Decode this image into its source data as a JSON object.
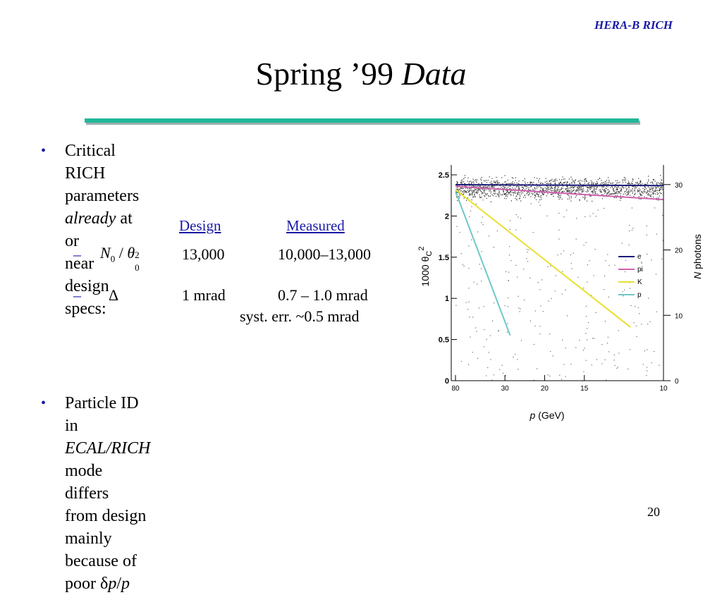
{
  "header": {
    "tag": "HERA-B RICH"
  },
  "title": {
    "main": "Spring ’99 ",
    "italic": "Data"
  },
  "bullets": [
    {
      "pre": "Critical RICH parameters ",
      "ital": "already",
      "post": " at or",
      "line2": "near design specs:"
    },
    {
      "pre": "Particle ID in ",
      "ital": "ECAL/RICH",
      "post": " mode differs",
      "line2": "from design mainly because of poor δ",
      "line2_ital": "p",
      "line2_post": "/",
      "line2_ital2": "p"
    }
  ],
  "table": {
    "col_design": "Design",
    "col_measured": "Measured",
    "rows": [
      {
        "param_N": "N",
        "param_sub": "0",
        "param_slash": " / ",
        "param_theta": "θ",
        "param_sup": "2",
        "param_sub2": "0",
        "design": "13,000",
        "measured": "10,000–13,000"
      },
      {
        "param": "Δ",
        "design": "1 mrad",
        "measured": "0.7 – 1.0 mrad",
        "note": "syst. err. ~0.5 mrad"
      }
    ]
  },
  "page_number": "20",
  "chart_data": {
    "type": "scatter",
    "xlabel_italic": "p",
    "xlabel": " (GeV)",
    "ylabel_left": "1000 θ",
    "ylabel_left_sub": "C",
    "ylabel_left_sup": "2",
    "ylabel_right_italic": "N",
    "ylabel_right": " photons",
    "x_ticks": [
      "80",
      "30",
      "20",
      "15",
      "10"
    ],
    "x_tick_inverse_p": [
      0.0125,
      0.0333,
      0.05,
      0.0667,
      0.1
    ],
    "y_ticks_left": [
      "0",
      "0.5",
      "1",
      "1.5",
      "2",
      "2.5"
    ],
    "ylim_left": [
      0,
      2.62
    ],
    "y_ticks_right": [
      "0",
      "10",
      "20",
      "30"
    ],
    "ylim_right": [
      0,
      33
    ],
    "legend": [
      {
        "name": "e",
        "color": "#1a1a7a"
      },
      {
        "name": "pi",
        "color": "#d060b0"
      },
      {
        "name": "K",
        "color": "#e8e030"
      },
      {
        "name": "p",
        "color": "#70c8c8"
      }
    ],
    "lines": [
      {
        "name": "e",
        "x_inv_p": [
          0.0125,
          0.1
        ],
        "y": [
          2.38,
          2.37
        ]
      },
      {
        "name": "pi",
        "x_inv_p": [
          0.0125,
          0.1
        ],
        "y": [
          2.36,
          2.2
        ]
      },
      {
        "name": "K",
        "x_inv_p": [
          0.0125,
          0.0861
        ],
        "y": [
          2.32,
          0.65
        ]
      },
      {
        "name": "p",
        "x_inv_p": [
          0.0125,
          0.0355
        ],
        "y": [
          2.3,
          0.55
        ]
      }
    ]
  }
}
